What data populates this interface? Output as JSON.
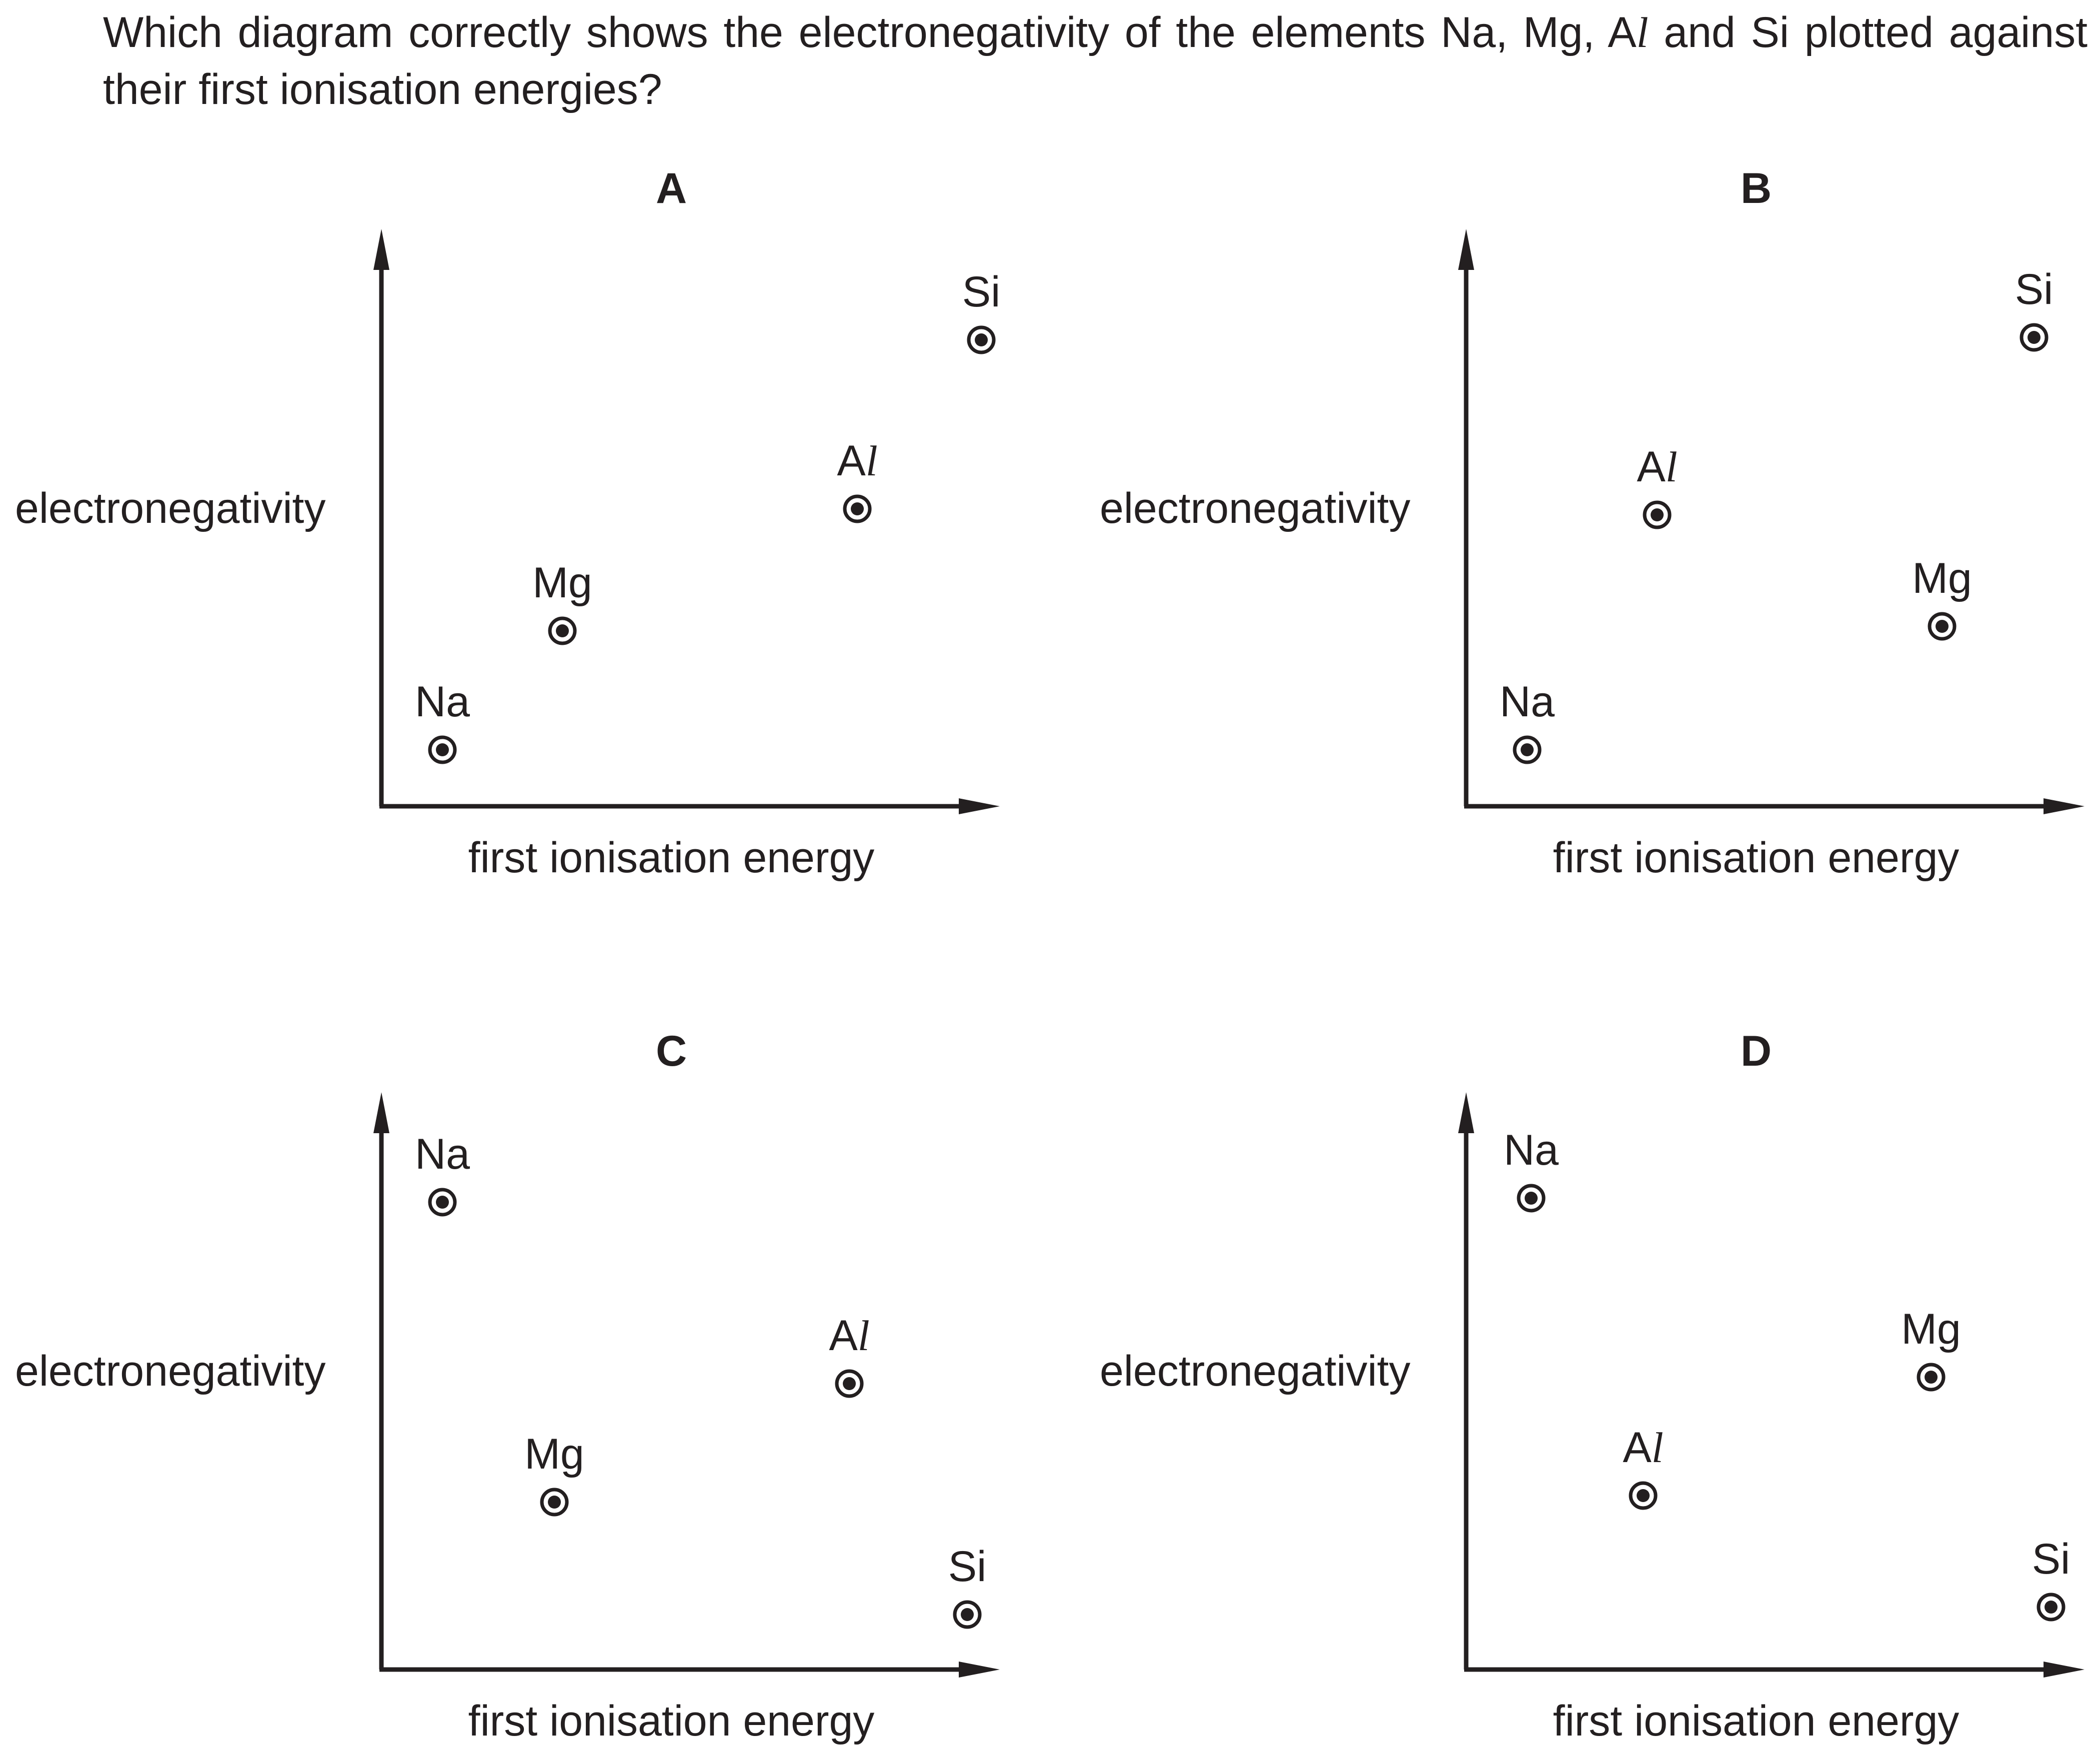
{
  "question": {
    "line1_before": "Which diagram correctly shows the electronegativity of the elements Na, Mg, A",
    "line1_ital": "l",
    "line1_after": " and Si plotted against their first ionisation energies?"
  },
  "axis_labels": {
    "y": "electronegativity",
    "x": "first ionisation energy"
  },
  "colors": {
    "ink": "#231f20",
    "background": "#ffffff"
  },
  "panels": [
    {
      "letter": "A",
      "points": [
        {
          "element": "Na",
          "base": "Na",
          "ital": ""
        },
        {
          "element": "Mg",
          "base": "Mg",
          "ital": ""
        },
        {
          "element": "Al",
          "base": "A",
          "ital": "l"
        },
        {
          "element": "Si",
          "base": "Si",
          "ital": ""
        }
      ]
    },
    {
      "letter": "B",
      "points": [
        {
          "element": "Na",
          "base": "Na",
          "ital": ""
        },
        {
          "element": "Al",
          "base": "A",
          "ital": "l"
        },
        {
          "element": "Mg",
          "base": "Mg",
          "ital": ""
        },
        {
          "element": "Si",
          "base": "Si",
          "ital": ""
        }
      ]
    },
    {
      "letter": "C",
      "points": [
        {
          "element": "Na",
          "base": "Na",
          "ital": ""
        },
        {
          "element": "Mg",
          "base": "Mg",
          "ital": ""
        },
        {
          "element": "Al",
          "base": "A",
          "ital": "l"
        },
        {
          "element": "Si",
          "base": "Si",
          "ital": ""
        }
      ]
    },
    {
      "letter": "D",
      "points": [
        {
          "element": "Na",
          "base": "Na",
          "ital": ""
        },
        {
          "element": "Al",
          "base": "A",
          "ital": "l"
        },
        {
          "element": "Mg",
          "base": "Mg",
          "ital": ""
        },
        {
          "element": "Si",
          "base": "Si",
          "ital": ""
        }
      ]
    }
  ]
}
